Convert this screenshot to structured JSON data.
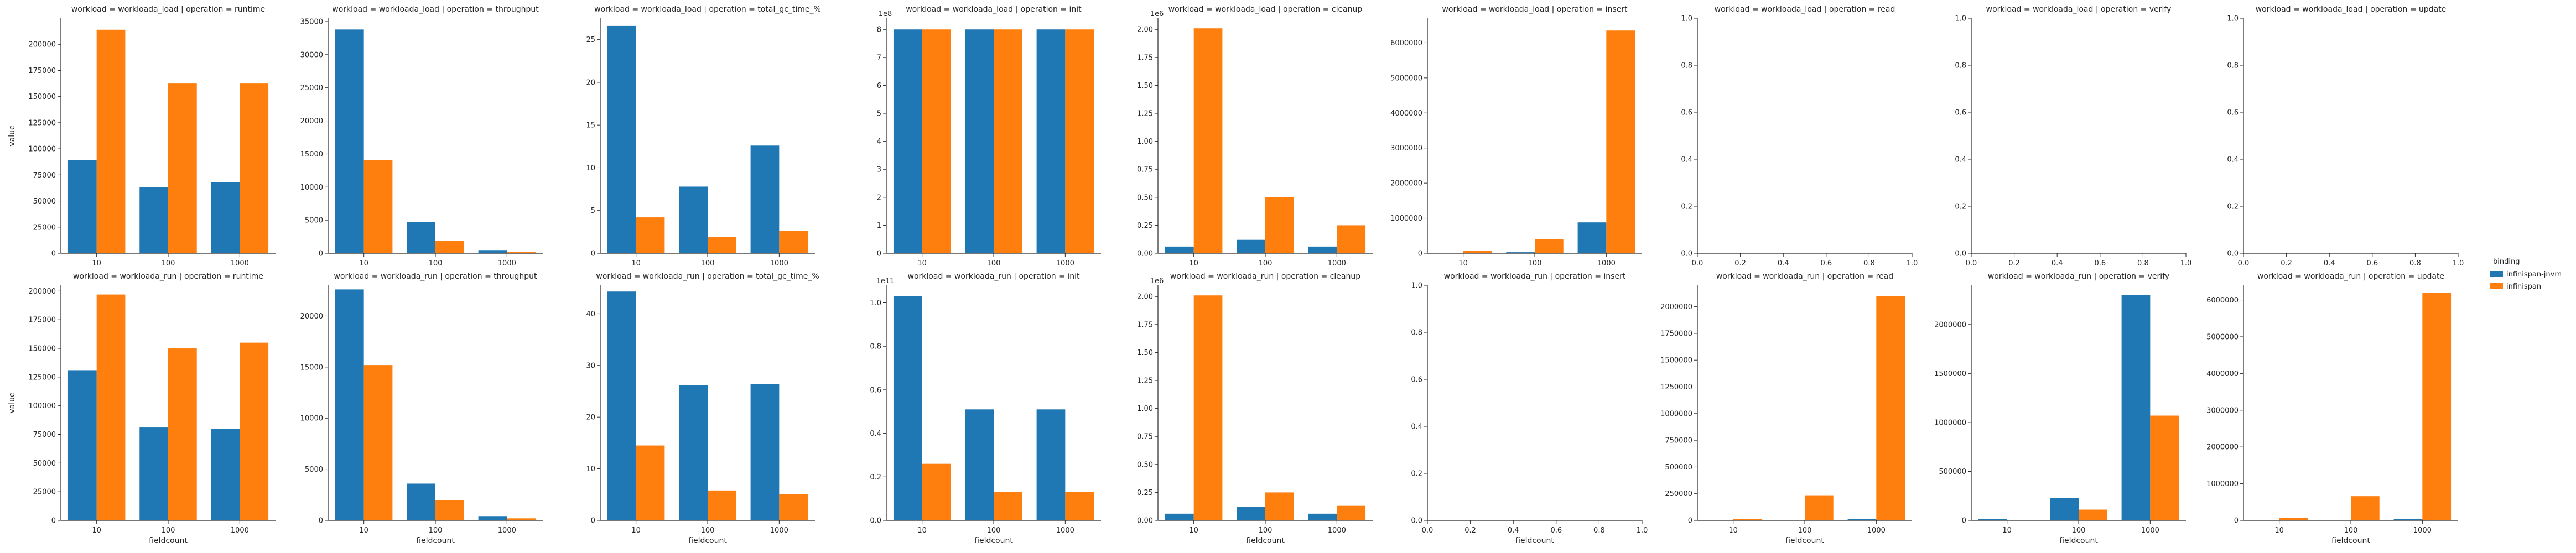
{
  "chart_data": {
    "type": "bar",
    "facet_grid": {
      "rows": "workload",
      "cols": "operation"
    },
    "categories": [
      "10",
      "100",
      "1000"
    ],
    "xlabel": "fieldcount",
    "ylabel": "value",
    "legend": {
      "title": "binding",
      "placement": "right",
      "entries": [
        {
          "name": "infinispan-jnvm",
          "color": "#1f77b4"
        },
        {
          "name": "infinispan",
          "color": "#ff7f0e"
        }
      ]
    },
    "panels": [
      {
        "title": "workload = workloada_load | operation = runtime",
        "empty": false,
        "ylim": [
          0,
          225000
        ],
        "yticks": [
          0,
          25000,
          50000,
          75000,
          100000,
          125000,
          150000,
          175000,
          200000
        ],
        "ytick_labels": [
          "0",
          "25000",
          "50000",
          "75000",
          "100000",
          "125000",
          "150000",
          "175000",
          "200000"
        ],
        "exponent": "",
        "series": [
          {
            "name": "infinispan-jnvm",
            "values": [
              89000,
              63000,
              68000
            ]
          },
          {
            "name": "infinispan",
            "values": [
              214000,
              163000,
              163000
            ]
          }
        ]
      },
      {
        "title": "workload = workloada_load | operation = throughput",
        "empty": false,
        "ylim": [
          0,
          35500
        ],
        "yticks": [
          0,
          5000,
          10000,
          15000,
          20000,
          25000,
          30000,
          35000
        ],
        "ytick_labels": [
          "0",
          "5000",
          "10000",
          "15000",
          "20000",
          "25000",
          "30000",
          "35000"
        ],
        "exponent": "",
        "series": [
          {
            "name": "infinispan-jnvm",
            "values": [
              33800,
              4700,
              480
            ]
          },
          {
            "name": "infinispan",
            "values": [
              14100,
              1850,
              190
            ]
          }
        ]
      },
      {
        "title": "workload = workloada_load | operation = total_gc_time_%",
        "empty": false,
        "ylim": [
          0,
          27.5
        ],
        "yticks": [
          0,
          5,
          10,
          15,
          20,
          25
        ],
        "ytick_labels": [
          "0",
          "5",
          "10",
          "15",
          "20",
          "25"
        ],
        "exponent": "",
        "series": [
          {
            "name": "infinispan-jnvm",
            "values": [
              26.6,
              7.8,
              12.6
            ]
          },
          {
            "name": "infinispan",
            "values": [
              4.2,
              1.9,
              2.6
            ]
          }
        ]
      },
      {
        "title": "workload = workloada_load | operation = init",
        "empty": false,
        "ylim": [
          0,
          8.4
        ],
        "yticks": [
          0,
          1,
          2,
          3,
          4,
          5,
          6,
          7,
          8
        ],
        "ytick_labels": [
          "0",
          "1",
          "2",
          "3",
          "4",
          "5",
          "6",
          "7",
          "8"
        ],
        "exponent": "1e8",
        "series": [
          {
            "name": "infinispan-jnvm",
            "values": [
              8.0,
              8.0,
              8.0
            ]
          },
          {
            "name": "infinispan",
            "values": [
              8.0,
              8.0,
              8.0
            ]
          }
        ]
      },
      {
        "title": "workload = workloada_load | operation = cleanup",
        "empty": false,
        "ylim": [
          0,
          2.1
        ],
        "yticks": [
          0,
          0.25,
          0.5,
          0.75,
          1.0,
          1.25,
          1.5,
          1.75,
          2.0
        ],
        "ytick_labels": [
          "0.00",
          "0.25",
          "0.50",
          "0.75",
          "1.00",
          "1.25",
          "1.50",
          "1.75",
          "2.00"
        ],
        "exponent": "1e6",
        "series": [
          {
            "name": "infinispan-jnvm",
            "values": [
              0.06,
              0.12,
              0.06
            ]
          },
          {
            "name": "infinispan",
            "values": [
              2.01,
              0.5,
              0.25
            ]
          }
        ]
      },
      {
        "title": "workload = workloada_load | operation = insert",
        "empty": false,
        "ylim": [
          0,
          6700000
        ],
        "yticks": [
          0,
          1000000,
          2000000,
          3000000,
          4000000,
          5000000,
          6000000
        ],
        "ytick_labels": [
          "0",
          "1000000",
          "2000000",
          "3000000",
          "4000000",
          "5000000",
          "6000000"
        ],
        "exponent": "",
        "series": [
          {
            "name": "infinispan-jnvm",
            "values": [
              12000,
              30000,
              880000
            ]
          },
          {
            "name": "infinispan",
            "values": [
              70000,
              410000,
              6350000
            ]
          }
        ]
      },
      {
        "title": "workload = workloada_load | operation = read",
        "empty": true,
        "ylim": [
          0,
          1
        ],
        "yticks": [
          0,
          0.2,
          0.4,
          0.6,
          0.8,
          1.0
        ],
        "ytick_labels": [
          "0.0",
          "0.2",
          "0.4",
          "0.6",
          "0.8",
          "1.0"
        ],
        "xticks": [
          0,
          0.2,
          0.4,
          0.6,
          0.8,
          1.0
        ],
        "xtick_labels": [
          "0.0",
          "0.2",
          "0.4",
          "0.6",
          "0.8",
          "1.0"
        ],
        "exponent": "",
        "series": []
      },
      {
        "title": "workload = workloada_load | operation = verify",
        "empty": true,
        "ylim": [
          0,
          1
        ],
        "yticks": [
          0,
          0.2,
          0.4,
          0.6,
          0.8,
          1.0
        ],
        "ytick_labels": [
          "0.0",
          "0.2",
          "0.4",
          "0.6",
          "0.8",
          "1.0"
        ],
        "xticks": [
          0,
          0.2,
          0.4,
          0.6,
          0.8,
          1.0
        ],
        "xtick_labels": [
          "0.0",
          "0.2",
          "0.4",
          "0.6",
          "0.8",
          "1.0"
        ],
        "exponent": "",
        "series": []
      },
      {
        "title": "workload = workloada_load | operation = update",
        "empty": true,
        "ylim": [
          0,
          1
        ],
        "yticks": [
          0,
          0.2,
          0.4,
          0.6,
          0.8,
          1.0
        ],
        "ytick_labels": [
          "0.0",
          "0.2",
          "0.4",
          "0.6",
          "0.8",
          "1.0"
        ],
        "xticks": [
          0,
          0.2,
          0.4,
          0.6,
          0.8,
          1.0
        ],
        "xtick_labels": [
          "0.0",
          "0.2",
          "0.4",
          "0.6",
          "0.8",
          "1.0"
        ],
        "exponent": "",
        "series": []
      },
      {
        "title": "workload = workloada_run | operation = runtime",
        "empty": false,
        "ylim": [
          0,
          205000
        ],
        "yticks": [
          0,
          25000,
          50000,
          75000,
          100000,
          125000,
          150000,
          175000,
          200000
        ],
        "ytick_labels": [
          "0",
          "25000",
          "50000",
          "75000",
          "100000",
          "125000",
          "150000",
          "175000",
          "200000"
        ],
        "exponent": "",
        "series": [
          {
            "name": "infinispan-jnvm",
            "values": [
              131000,
              81000,
              80000
            ]
          },
          {
            "name": "infinispan",
            "values": [
              197000,
              150000,
              155000
            ]
          }
        ]
      },
      {
        "title": "workload = workloada_run | operation = throughput",
        "empty": false,
        "ylim": [
          0,
          23000
        ],
        "yticks": [
          0,
          5000,
          10000,
          15000,
          20000
        ],
        "ytick_labels": [
          "0",
          "5000",
          "10000",
          "15000",
          "20000"
        ],
        "exponent": "",
        "series": [
          {
            "name": "infinispan-jnvm",
            "values": [
              22600,
              3600,
              420
            ]
          },
          {
            "name": "infinispan",
            "values": [
              15200,
              1950,
              200
            ]
          }
        ]
      },
      {
        "title": "workload = workloada_run | operation = total_gc_time_%",
        "empty": false,
        "ylim": [
          0,
          45.5
        ],
        "yticks": [
          0,
          10,
          20,
          30,
          40
        ],
        "ytick_labels": [
          "0",
          "10",
          "20",
          "30",
          "40"
        ],
        "exponent": "",
        "series": [
          {
            "name": "infinispan-jnvm",
            "values": [
              44.3,
              26.2,
              26.4
            ]
          },
          {
            "name": "infinispan",
            "values": [
              14.5,
              5.8,
              5.1
            ]
          }
        ]
      },
      {
        "title": "workload = workloada_run | operation = init",
        "empty": false,
        "ylim": [
          0,
          1.08
        ],
        "yticks": [
          0,
          0.2,
          0.4,
          0.6,
          0.8,
          1.0
        ],
        "ytick_labels": [
          "0.0",
          "0.2",
          "0.4",
          "0.6",
          "0.8",
          "1.0"
        ],
        "exponent": "1e11",
        "series": [
          {
            "name": "infinispan-jnvm",
            "values": [
              1.03,
              0.51,
              0.51
            ]
          },
          {
            "name": "infinispan",
            "values": [
              0.26,
              0.13,
              0.13
            ]
          }
        ]
      },
      {
        "title": "workload = workloada_run | operation = cleanup",
        "empty": false,
        "ylim": [
          0,
          2.1
        ],
        "yticks": [
          0,
          0.25,
          0.5,
          0.75,
          1.0,
          1.25,
          1.5,
          1.75,
          2.0
        ],
        "ytick_labels": [
          "0.00",
          "0.25",
          "0.50",
          "0.75",
          "1.00",
          "1.25",
          "1.50",
          "1.75",
          "2.00"
        ],
        "exponent": "1e6",
        "series": [
          {
            "name": "infinispan-jnvm",
            "values": [
              0.06,
              0.12,
              0.06
            ]
          },
          {
            "name": "infinispan",
            "values": [
              2.01,
              0.25,
              0.13
            ]
          }
        ]
      },
      {
        "title": "workload = workloada_run | operation = insert",
        "empty": true,
        "ylim": [
          0,
          1
        ],
        "yticks": [
          0,
          0.2,
          0.4,
          0.6,
          0.8,
          1.0
        ],
        "ytick_labels": [
          "0.0",
          "0.2",
          "0.4",
          "0.6",
          "0.8",
          "1.0"
        ],
        "xticks": [
          0,
          0.2,
          0.4,
          0.6,
          0.8,
          1.0
        ],
        "xtick_labels": [
          "0.0",
          "0.2",
          "0.4",
          "0.6",
          "0.8",
          "1.0"
        ],
        "exponent": "",
        "series": []
      },
      {
        "title": "workload = workloada_run | operation = read",
        "empty": false,
        "ylim": [
          0,
          2200000
        ],
        "yticks": [
          0,
          250000,
          500000,
          750000,
          1000000,
          1250000,
          1500000,
          1750000,
          2000000
        ],
        "ytick_labels": [
          "0",
          "250000",
          "500000",
          "750000",
          "1000000",
          "1250000",
          "1500000",
          "1750000",
          "2000000"
        ],
        "exponent": "",
        "series": [
          {
            "name": "infinispan-jnvm",
            "values": [
              3000,
              5000,
              12000
            ]
          },
          {
            "name": "infinispan",
            "values": [
              14000,
              230000,
              2100000
            ]
          }
        ]
      },
      {
        "title": "workload = workloada_run | operation = verify",
        "empty": false,
        "ylim": [
          0,
          2400000
        ],
        "yticks": [
          0,
          500000,
          1000000,
          1500000,
          2000000
        ],
        "ytick_labels": [
          "0",
          "500000",
          "1000000",
          "1500000",
          "2000000"
        ],
        "exponent": "",
        "series": [
          {
            "name": "infinispan-jnvm",
            "values": [
              15000,
              230000,
              2300000
            ]
          },
          {
            "name": "infinispan",
            "values": [
              5000,
              110000,
              1070000
            ]
          }
        ]
      },
      {
        "title": "workload = workloada_run | operation = update",
        "empty": false,
        "ylim": [
          0,
          6400000
        ],
        "yticks": [
          0,
          1000000,
          2000000,
          3000000,
          4000000,
          5000000,
          6000000
        ],
        "ytick_labels": [
          "0",
          "1000000",
          "2000000",
          "3000000",
          "4000000",
          "5000000",
          "6000000"
        ],
        "exponent": "",
        "series": [
          {
            "name": "infinispan-jnvm",
            "values": [
              10000,
              10000,
              40000
            ]
          },
          {
            "name": "infinispan",
            "values": [
              60000,
              660000,
              6200000
            ]
          }
        ]
      }
    ]
  }
}
